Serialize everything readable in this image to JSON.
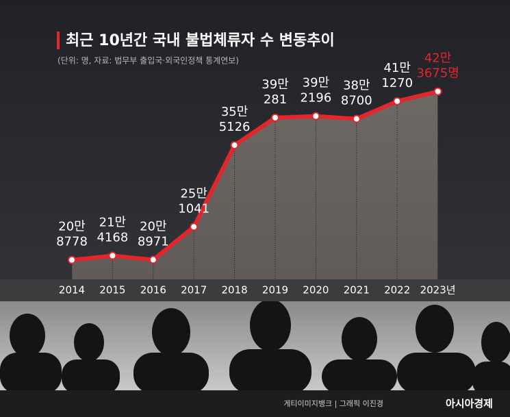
{
  "chart_data": {
    "type": "line",
    "title": "최근 10년간 국내 불법체류자 수 변동추이",
    "subtitle": "(단위: 명, 자료: 법무부 출입국·외국인정책 통계연보)",
    "categories": [
      "2014",
      "2015",
      "2016",
      "2017",
      "2018",
      "2019",
      "2020",
      "2021",
      "2022",
      "2023년"
    ],
    "values": [
      208778,
      214168,
      208971,
      251041,
      355126,
      390281,
      392196,
      388700,
      411270,
      423675
    ],
    "value_labels": [
      "20만 8778",
      "21만 4168",
      "20만 8971",
      "25만 1041",
      "35만 5126",
      "39만 281",
      "39만 2196",
      "38만 8700",
      "41만 1270",
      "42만 3675명"
    ],
    "color": "#e3262b",
    "ylim": [
      184000,
      488000
    ],
    "credits": "게티이미지뱅크 | 그래픽 이진경",
    "publisher": "아시아경제"
  }
}
